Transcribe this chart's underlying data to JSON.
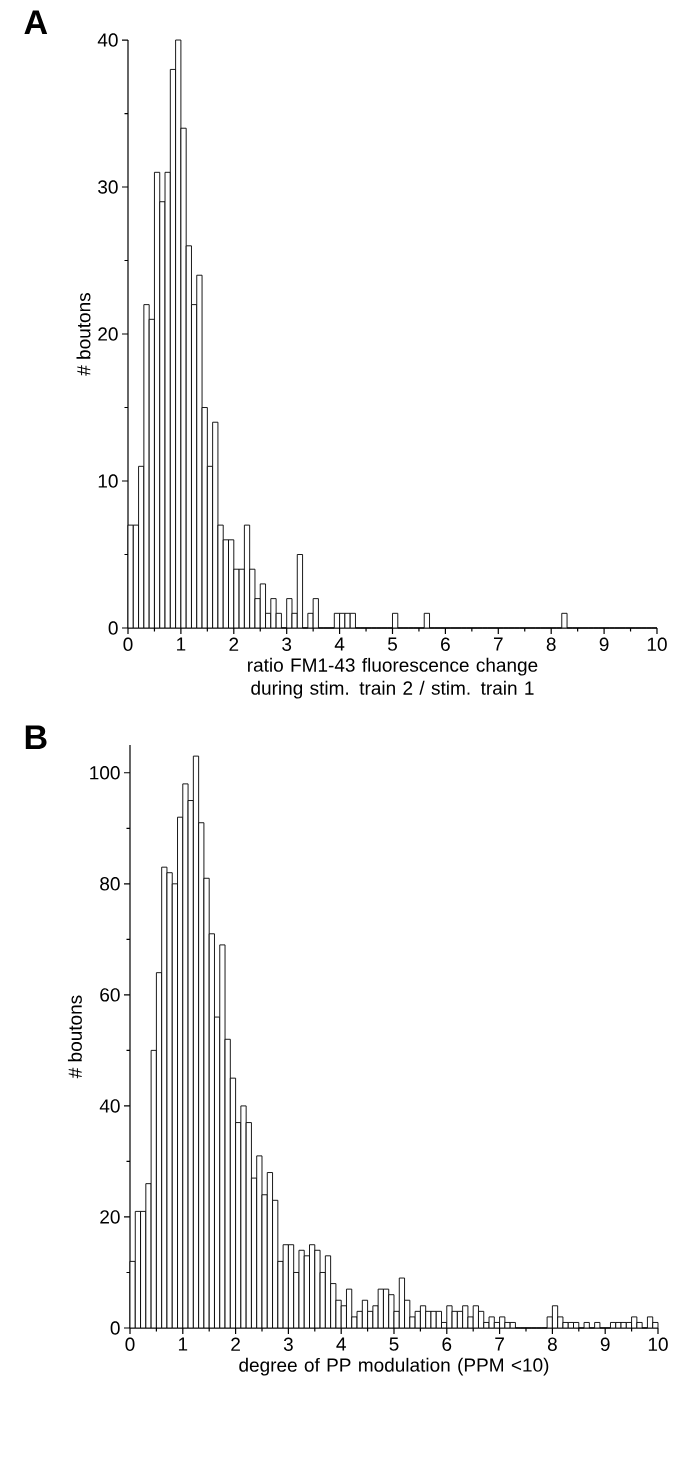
{
  "chart_data": [
    {
      "type": "histogram",
      "annotations": [
        "A"
      ],
      "xlabel": "ratio FM1-43 fluorescence change during stim. train 2 / stim. train 1",
      "ylabel": "# boutons",
      "color": "#ffffff",
      "bins": [
        0,
        0.1,
        0.2,
        0.3,
        0.4,
        0.5,
        0.6,
        0.7,
        0.8,
        0.9,
        1,
        1.1,
        1.2,
        1.3,
        1.4,
        1.5,
        1.6,
        1.7,
        1.8,
        1.9,
        2,
        2.1,
        2.2,
        2.3,
        2.4,
        2.5,
        2.6,
        2.7,
        2.8,
        2.9,
        3,
        3.1,
        3.2,
        3.3,
        3.4,
        3.5,
        3.6,
        3.7,
        3.8,
        3.9,
        4,
        4.1,
        4.2,
        4.3,
        4.4,
        4.5,
        4.6,
        4.7,
        4.8,
        4.9,
        5,
        5.1,
        5.2,
        5.3,
        5.4,
        5.5,
        5.6,
        5.7,
        5.8,
        5.9,
        6,
        6.1,
        6.2,
        6.3,
        6.4,
        6.5,
        6.6,
        6.7,
        6.8,
        6.9,
        7,
        7.1,
        7.2,
        7.3,
        7.4,
        7.5,
        7.6,
        7.7,
        7.8,
        7.9,
        8,
        8.1,
        8.2,
        8.3,
        8.4,
        8.5,
        8.6,
        8.7,
        8.8,
        8.9,
        9,
        9.1,
        9.2,
        9.3,
        9.4,
        9.5,
        9.6,
        9.7,
        9.8,
        9.9,
        10
      ],
      "values": [
        7,
        7,
        11,
        22,
        21,
        31,
        29,
        31,
        38,
        40,
        34,
        26,
        22,
        24,
        15,
        11,
        14,
        7,
        6,
        6,
        4,
        4,
        7,
        4,
        2,
        3,
        1,
        2,
        1,
        0,
        2,
        1,
        5,
        0,
        1,
        2,
        0,
        0,
        0,
        1,
        1,
        1,
        1,
        0,
        0,
        0,
        0,
        0,
        0,
        0,
        1,
        0,
        0,
        0,
        0,
        0,
        1,
        0,
        0,
        0,
        0,
        0,
        0,
        0,
        0,
        0,
        0,
        0,
        0,
        0,
        0,
        0,
        0,
        0,
        0,
        0,
        0,
        0,
        0,
        0,
        0,
        0,
        1,
        0,
        0,
        0,
        0,
        0,
        0,
        0,
        0,
        0,
        0,
        0,
        0,
        0,
        0,
        0,
        0,
        0
      ],
      "xlim": [
        0,
        10
      ],
      "ylim": [
        0,
        40
      ],
      "xticks": [
        0,
        1,
        2,
        3,
        4,
        5,
        6,
        7,
        8,
        9,
        10
      ],
      "yticks": [
        0,
        10,
        20,
        30,
        40
      ]
    },
    {
      "type": "histogram",
      "annotations": [
        "B"
      ],
      "xlabel": "degree of PP modulation (PPM <10)",
      "ylabel": "# boutons",
      "color": "#ffffff",
      "bins": [
        0,
        0.1,
        0.2,
        0.3,
        0.4,
        0.5,
        0.6,
        0.7,
        0.8,
        0.9,
        1,
        1.1,
        1.2,
        1.3,
        1.4,
        1.5,
        1.6,
        1.7,
        1.8,
        1.9,
        2,
        2.1,
        2.2,
        2.3,
        2.4,
        2.5,
        2.6,
        2.7,
        2.8,
        2.9,
        3,
        3.1,
        3.2,
        3.3,
        3.4,
        3.5,
        3.6,
        3.7,
        3.8,
        3.9,
        4,
        4.1,
        4.2,
        4.3,
        4.4,
        4.5,
        4.6,
        4.7,
        4.8,
        4.9,
        5,
        5.1,
        5.2,
        5.3,
        5.4,
        5.5,
        5.6,
        5.7,
        5.8,
        5.9,
        6,
        6.1,
        6.2,
        6.3,
        6.4,
        6.5,
        6.6,
        6.7,
        6.8,
        6.9,
        7,
        7.1,
        7.2,
        7.3,
        7.4,
        7.5,
        7.6,
        7.7,
        7.8,
        7.9,
        8,
        8.1,
        8.2,
        8.3,
        8.4,
        8.5,
        8.6,
        8.7,
        8.8,
        8.9,
        9,
        9.1,
        9.2,
        9.3,
        9.4,
        9.5,
        9.6,
        9.7,
        9.8,
        9.9,
        10
      ],
      "values": [
        12,
        21,
        21,
        26,
        50,
        64,
        83,
        82,
        80,
        92,
        98,
        95,
        103,
        91,
        81,
        71,
        56,
        69,
        52,
        45,
        37,
        40,
        37,
        27,
        31,
        24,
        28,
        23,
        12,
        15,
        15,
        10,
        14,
        13,
        15,
        14,
        10,
        13,
        8,
        5,
        4,
        7,
        2,
        3,
        5,
        3,
        4,
        7,
        7,
        6,
        3,
        9,
        5,
        2,
        3,
        4,
        3,
        3,
        3,
        1,
        4,
        3,
        3,
        4,
        2,
        4,
        3,
        1,
        2,
        1,
        2,
        1,
        1,
        0,
        0,
        0,
        0,
        0,
        0,
        2,
        4,
        2,
        1,
        1,
        1,
        0,
        1,
        0,
        1,
        0,
        0,
        1,
        1,
        1,
        1,
        2,
        1,
        0,
        2,
        1
      ],
      "xlim": [
        0,
        10
      ],
      "ylim": [
        0,
        105
      ],
      "xticks": [
        0,
        1,
        2,
        3,
        4,
        5,
        6,
        7,
        8,
        9,
        10
      ],
      "yticks": [
        0,
        20,
        40,
        60,
        80,
        100
      ]
    }
  ]
}
